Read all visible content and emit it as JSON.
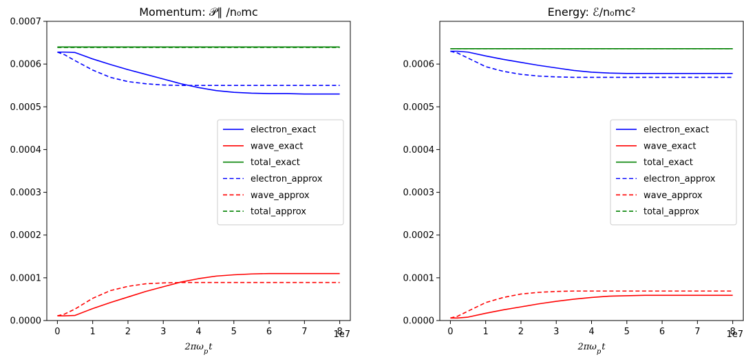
{
  "chart_data": [
    {
      "type": "line",
      "title": "Momentum: 𝒫∥ /n₀mc",
      "xlabel": "2πω_p t",
      "x_offset_label": "1e7",
      "xlim": [
        -0.3,
        8.3
      ],
      "ylim": [
        0.0,
        0.0007
      ],
      "x_ticks": [
        "0",
        "1",
        "2",
        "3",
        "4",
        "5",
        "6",
        "7",
        "8"
      ],
      "y_ticks": [
        "0.0000",
        "0.0001",
        "0.0002",
        "0.0003",
        "0.0004",
        "0.0005",
        "0.0006",
        "0.0007"
      ],
      "legend_position": "center-right",
      "grid": false,
      "x": [
        0,
        0.2,
        0.5,
        1,
        1.5,
        2,
        2.5,
        3,
        3.5,
        4,
        4.5,
        5,
        5.5,
        6,
        6.5,
        7,
        7.5,
        8
      ],
      "series": [
        {
          "name": "electron_exact",
          "color": "#0000ff",
          "dash": "solid",
          "values": [
            0.000628,
            0.000628,
            0.000627,
            0.000612,
            0.000599,
            0.000587,
            0.000576,
            0.000565,
            0.000554,
            0.000545,
            0.000538,
            0.000534,
            0.000532,
            0.000531,
            0.000531,
            0.00053,
            0.00053,
            0.00053
          ]
        },
        {
          "name": "wave_exact",
          "color": "#ff0000",
          "dash": "solid",
          "values": [
            1.1e-05,
            1.1e-05,
            1.2e-05,
            2.8e-05,
            4.2e-05,
            5.5e-05,
            6.8e-05,
            7.9e-05,
            9e-05,
            9.8e-05,
            0.000104,
            0.000107,
            0.000109,
            0.00011,
            0.00011,
            0.00011,
            0.00011,
            0.00011
          ]
        },
        {
          "name": "total_exact",
          "color": "#008000",
          "dash": "solid",
          "values": [
            0.00064,
            0.00064,
            0.00064,
            0.00064,
            0.00064,
            0.00064,
            0.00064,
            0.00064,
            0.00064,
            0.00064,
            0.00064,
            0.00064,
            0.00064,
            0.00064,
            0.00064,
            0.00064,
            0.00064,
            0.00064
          ]
        },
        {
          "name": "electron_approx",
          "color": "#0000ff",
          "dash": "dashed",
          "values": [
            0.000628,
            0.000622,
            0.000608,
            0.000586,
            0.000569,
            0.000559,
            0.000554,
            0.000551,
            0.00055,
            0.00055,
            0.00055,
            0.00055,
            0.00055,
            0.00055,
            0.00055,
            0.00055,
            0.00055,
            0.00055
          ]
        },
        {
          "name": "wave_approx",
          "color": "#ff0000",
          "dash": "dashed",
          "values": [
            1.1e-05,
            1.5e-05,
            2.7e-05,
            5.2e-05,
            7e-05,
            8e-05,
            8.6e-05,
            8.8e-05,
            8.9e-05,
            8.9e-05,
            8.9e-05,
            8.9e-05,
            8.9e-05,
            8.9e-05,
            8.9e-05,
            8.9e-05,
            8.9e-05,
            8.9e-05
          ]
        },
        {
          "name": "total_approx",
          "color": "#008000",
          "dash": "dashed",
          "values": [
            0.000639,
            0.000639,
            0.000639,
            0.000639,
            0.000639,
            0.000639,
            0.000639,
            0.000639,
            0.000639,
            0.000639,
            0.000639,
            0.000639,
            0.000639,
            0.000639,
            0.000639,
            0.000639,
            0.000639,
            0.000639
          ]
        }
      ]
    },
    {
      "type": "line",
      "title": "Energy: ℰ/n₀mc²",
      "xlabel": "2πω_p t",
      "x_offset_label": "1e7",
      "xlim": [
        -0.3,
        8.3
      ],
      "ylim": [
        0.0,
        0.0007
      ],
      "x_ticks": [
        "0",
        "1",
        "2",
        "3",
        "4",
        "5",
        "6",
        "7",
        "8"
      ],
      "y_ticks": [
        "0.0000",
        "0.0001",
        "0.0002",
        "0.0003",
        "0.0004",
        "0.0005",
        "0.0006"
      ],
      "legend_position": "center-right",
      "grid": false,
      "x": [
        0,
        0.2,
        0.5,
        1,
        1.5,
        2,
        2.5,
        3,
        3.5,
        4,
        4.5,
        5,
        5.5,
        6,
        6.5,
        7,
        7.5,
        8
      ],
      "series": [
        {
          "name": "electron_exact",
          "color": "#0000ff",
          "dash": "solid",
          "values": [
            0.00063,
            0.00063,
            0.000628,
            0.000619,
            0.000611,
            0.000604,
            0.000597,
            0.000591,
            0.000585,
            0.000581,
            0.000579,
            0.000578,
            0.000578,
            0.000578,
            0.000578,
            0.000578,
            0.000578,
            0.000578
          ]
        },
        {
          "name": "wave_exact",
          "color": "#ff0000",
          "dash": "solid",
          "values": [
            6e-06,
            6e-06,
            8e-06,
            1.7e-05,
            2.5e-05,
            3.2e-05,
            3.9e-05,
            4.5e-05,
            5e-05,
            5.4e-05,
            5.7e-05,
            5.8e-05,
            5.9e-05,
            5.9e-05,
            5.9e-05,
            5.9e-05,
            5.9e-05,
            5.9e-05
          ]
        },
        {
          "name": "total_exact",
          "color": "#008000",
          "dash": "solid",
          "values": [
            0.000636,
            0.000636,
            0.000636,
            0.000636,
            0.000636,
            0.000636,
            0.000636,
            0.000636,
            0.000636,
            0.000636,
            0.000636,
            0.000636,
            0.000636,
            0.000636,
            0.000636,
            0.000636,
            0.000636,
            0.000636
          ]
        },
        {
          "name": "electron_approx",
          "color": "#0000ff",
          "dash": "dashed",
          "values": [
            0.00063,
            0.000626,
            0.000614,
            0.000594,
            0.000583,
            0.000576,
            0.000572,
            0.00057,
            0.000569,
            0.000569,
            0.000569,
            0.000569,
            0.000569,
            0.000569,
            0.000569,
            0.000569,
            0.000569,
            0.000569
          ]
        },
        {
          "name": "wave_approx",
          "color": "#ff0000",
          "dash": "dashed",
          "values": [
            6e-06,
            1e-05,
            2.2e-05,
            4.2e-05,
            5.4e-05,
            6.2e-05,
            6.6e-05,
            6.8e-05,
            6.9e-05,
            6.9e-05,
            6.9e-05,
            6.9e-05,
            6.9e-05,
            6.9e-05,
            6.9e-05,
            6.9e-05,
            6.9e-05,
            6.9e-05
          ]
        },
        {
          "name": "total_approx",
          "color": "#008000",
          "dash": "dashed",
          "values": [
            0.000636,
            0.000636,
            0.000636,
            0.000636,
            0.000636,
            0.000636,
            0.000636,
            0.000636,
            0.000636,
            0.000636,
            0.000636,
            0.000636,
            0.000636,
            0.000636,
            0.000636,
            0.000636,
            0.000636,
            0.000636
          ]
        }
      ]
    }
  ]
}
